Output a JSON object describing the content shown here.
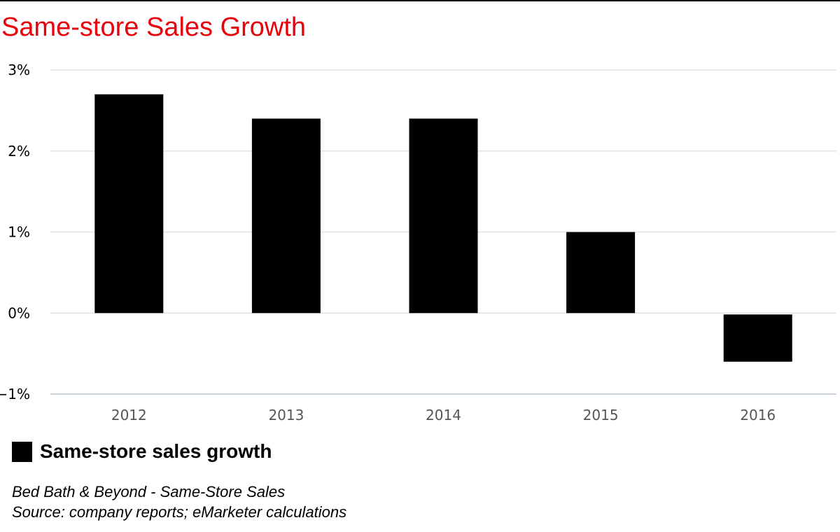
{
  "chart_data": {
    "type": "bar",
    "title": "Same-store Sales Growth",
    "categories": [
      "2012",
      "2013",
      "2014",
      "2015",
      "2016"
    ],
    "series": [
      {
        "name": "Same-store sales growth",
        "values": [
          2.7,
          2.4,
          2.4,
          1.0,
          -0.6
        ],
        "color": "#000000"
      }
    ],
    "ylim": [
      -1,
      3
    ],
    "yticks": [
      3,
      2,
      1,
      0,
      -1
    ],
    "ytick_labels": [
      "3%",
      "2%",
      "1%",
      "0%",
      "−1%"
    ],
    "grid": true,
    "legend_position": "bottom-left",
    "notes": [
      "Bed Bath & Beyond - Same-Store Sales",
      "Source: company reports; eMarketer calculations"
    ]
  },
  "colors": {
    "title": "#e8000b",
    "bar": "#000000",
    "grid": "#dde3ea",
    "x_axis_line": "#c7d1dc",
    "x_tick_text": "#555555",
    "y_tick_text": "#000000"
  }
}
